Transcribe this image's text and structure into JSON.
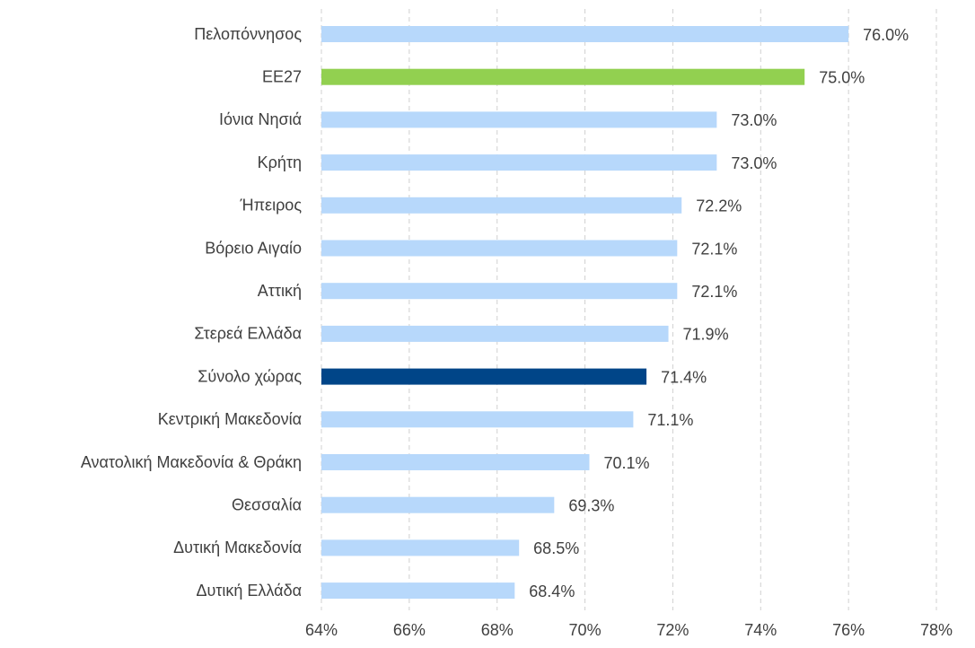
{
  "chart_data": {
    "type": "barh",
    "categories": [
      "Πελοπόννησος",
      "ΕΕ27",
      "Ιόνια Νησιά",
      "Κρήτη",
      "Ήπειρος",
      "Βόρειο Αιγαίο",
      "Αττική",
      "Στερεά Ελλάδα",
      "Σύνολο χώρας",
      "Κεντρική Μακεδονία",
      "Ανατολική Μακεδονία & Θράκη",
      "Θεσσαλία",
      "Δυτική Μακεδονία",
      "Δυτική Ελλάδα"
    ],
    "values": [
      76.0,
      75.0,
      73.0,
      73.0,
      72.2,
      72.1,
      72.1,
      71.9,
      71.4,
      71.1,
      70.1,
      69.3,
      68.5,
      68.4
    ],
    "value_labels": [
      "76.0%",
      "75.0%",
      "73.0%",
      "73.0%",
      "72.2%",
      "72.1%",
      "72.1%",
      "71.9%",
      "71.4%",
      "71.1%",
      "70.1%",
      "69.3%",
      "68.5%",
      "68.4%"
    ],
    "colors": [
      "#b7d8fb",
      "#92d050",
      "#b7d8fb",
      "#b7d8fb",
      "#b7d8fb",
      "#b7d8fb",
      "#b7d8fb",
      "#b7d8fb",
      "#004588",
      "#b7d8fb",
      "#b7d8fb",
      "#b7d8fb",
      "#b7d8fb",
      "#b7d8fb"
    ],
    "xlim": [
      64,
      78
    ],
    "xticks": [
      {
        "value": 64,
        "label": "64%"
      },
      {
        "value": 66,
        "label": "66%"
      },
      {
        "value": 68,
        "label": "68%"
      },
      {
        "value": 70,
        "label": "70%"
      },
      {
        "value": 72,
        "label": "72%"
      },
      {
        "value": 74,
        "label": "74%"
      },
      {
        "value": 76,
        "label": "76%"
      },
      {
        "value": 78,
        "label": "78%"
      }
    ],
    "grid": true
  }
}
